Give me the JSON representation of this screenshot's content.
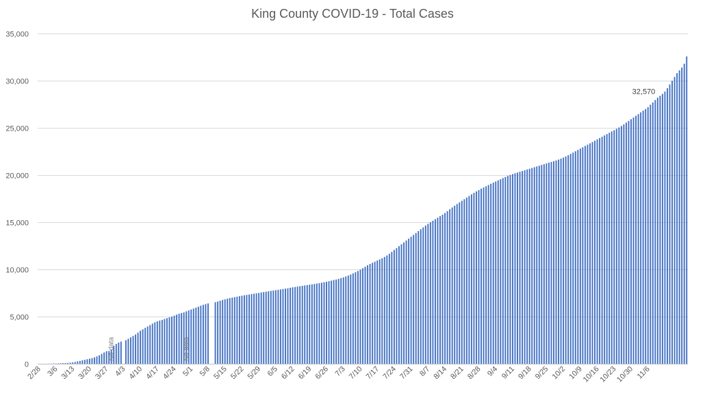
{
  "chart_data": {
    "type": "bar",
    "title": "King County COVID-19 - Total Cases",
    "xlabel": "",
    "ylabel": "",
    "ylim": [
      0,
      35000
    ],
    "yticks": [
      0,
      5000,
      10000,
      15000,
      20000,
      25000,
      30000,
      35000
    ],
    "ytick_labels": [
      "0",
      "5,000",
      "10,000",
      "15,000",
      "20,000",
      "25,000",
      "30,000",
      "35,000"
    ],
    "grid": true,
    "legend": "none",
    "bar_color": "#4472C4",
    "axis_color": "#595959",
    "gridline_color": "#d9d9d9",
    "x_start": "2/28",
    "x_end": "11/9",
    "xtick_labels": [
      "2/28",
      "3/6",
      "3/13",
      "3/20",
      "3/27",
      "4/3",
      "4/10",
      "4/17",
      "4/24",
      "5/1",
      "5/8",
      "5/15",
      "5/22",
      "5/29",
      "6/5",
      "6/12",
      "6/19",
      "6/26",
      "7/3",
      "7/10",
      "7/17",
      "7/24",
      "7/31",
      "8/7",
      "8/14",
      "8/21",
      "8/28",
      "9/4",
      "9/11",
      "9/18",
      "9/25",
      "10/2",
      "10/9",
      "10/16",
      "10/23",
      "10/30",
      "11/6"
    ],
    "annotations": [
      {
        "text": "No data",
        "x": "4/29"
      },
      {
        "text": "No data",
        "x": "3/29"
      },
      {
        "text": "32,570",
        "x": "11/9"
      }
    ],
    "gaps": [
      "3/29",
      "4/29",
      "4/30"
    ],
    "series": [
      {
        "values": [
          1,
          2,
          3,
          5,
          8,
          14,
          20,
          27,
          38,
          50,
          62,
          75,
          90,
          110,
          140,
          190,
          250,
          300,
          360,
          420,
          480,
          540,
          600,
          680,
          780,
          900,
          1050,
          1200,
          1330,
          1360,
          1500,
          1900,
          2100,
          2250,
          2350,
          0,
          2500,
          2650,
          2800,
          2950,
          3100,
          3300,
          3500,
          3650,
          3800,
          3950,
          4100,
          4250,
          4400,
          4500,
          4580,
          4650,
          4750,
          4830,
          4920,
          5000,
          5100,
          5200,
          5300,
          5380,
          5450,
          5550,
          5650,
          5750,
          5850,
          5950,
          6050,
          6150,
          6250,
          6330,
          6400,
          0,
          0,
          6520,
          6600,
          6680,
          6760,
          6830,
          6900,
          6960,
          7010,
          7060,
          7110,
          7160,
          7210,
          7260,
          7300,
          7340,
          7380,
          7420,
          7460,
          7500,
          7550,
          7600,
          7640,
          7680,
          7720,
          7760,
          7800,
          7840,
          7880,
          7920,
          7960,
          8000,
          8050,
          8100,
          8140,
          8180,
          8220,
          8260,
          8300,
          8340,
          8380,
          8420,
          8460,
          8500,
          8540,
          8590,
          8640,
          8690,
          8750,
          8810,
          8870,
          8930,
          9000,
          9080,
          9160,
          9250,
          9350,
          9460,
          9580,
          9700,
          9830,
          9970,
          10120,
          10280,
          10440,
          10580,
          10700,
          10820,
          10940,
          11060,
          11180,
          11320,
          11480,
          11660,
          11860,
          12060,
          12260,
          12460,
          12660,
          12860,
          13060,
          13260,
          13460,
          13660,
          13860,
          14060,
          14260,
          14450,
          14640,
          14830,
          15000,
          15160,
          15320,
          15480,
          15640,
          15800,
          15980,
          16170,
          16370,
          16560,
          16750,
          16930,
          17100,
          17270,
          17440,
          17610,
          17780,
          17950,
          18110,
          18260,
          18410,
          18550,
          18680,
          18810,
          18940,
          19070,
          19200,
          19320,
          19440,
          19560,
          19680,
          19800,
          19910,
          20010,
          20100,
          20190,
          20270,
          20350,
          20430,
          20510,
          20590,
          20670,
          20750,
          20830,
          20910,
          20990,
          21070,
          21150,
          21230,
          21310,
          21390,
          21470,
          21550,
          21640,
          21740,
          21850,
          21970,
          22100,
          22240,
          22380,
          22520,
          22660,
          22800,
          22940,
          23080,
          23220,
          23360,
          23500,
          23640,
          23780,
          23920,
          24060,
          24200,
          24340,
          24480,
          24620,
          24760,
          24900,
          25040,
          25200,
          25380,
          25560,
          25740,
          25920,
          26100,
          26280,
          26460,
          26640,
          26820,
          27000,
          27200,
          27450,
          27700,
          27950,
          28200,
          28400,
          28600,
          28850,
          29200,
          29600,
          30000,
          30400,
          30800,
          31100,
          31400,
          31800,
          32570
        ]
      }
    ]
  }
}
